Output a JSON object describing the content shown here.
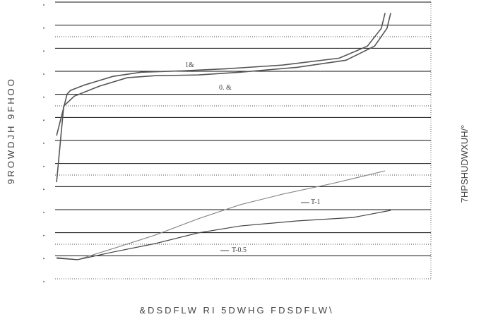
{
  "chart_data": {
    "type": "line",
    "x_label": "&DSDFLW RI 5DWHG FDSDFLW\\",
    "y_label": "9ROWDJH 9FHOO",
    "y2_label": "7HPSHUDWXUH/°",
    "xlim": [
      0,
      100
    ],
    "ylim": [
      0,
      12
    ],
    "yticks": [
      0,
      1,
      2,
      3,
      4,
      5,
      6,
      7,
      8,
      9,
      10,
      11,
      12
    ],
    "minor_grid": [
      1.5,
      4.5,
      7.5,
      10.5
    ],
    "grid": true,
    "series": [
      {
        "name": "1&",
        "color": "#555555",
        "x": [
          0.4,
          3.2,
          4.1,
          7.9,
          15.4,
          22.9,
          34.2,
          45.5,
          60.5,
          75.6,
          83.1,
          86.8,
          87.8
        ],
        "values": [
          6.21,
          8.01,
          8.17,
          8.41,
          8.78,
          8.96,
          9.02,
          9.11,
          9.27,
          9.57,
          10.09,
          10.86,
          11.53
        ]
      },
      {
        "name": "0. &",
        "color": "#555555",
        "x": [
          0.4,
          2.3,
          5.1,
          11.7,
          19.2,
          26.7,
          38.0,
          49.2,
          64.3,
          77.4,
          85.0,
          88.3,
          89.3
        ],
        "values": [
          4.19,
          7.49,
          7.92,
          8.35,
          8.72,
          8.81,
          8.84,
          8.96,
          9.17,
          9.48,
          10.09,
          10.86,
          11.53
        ]
      },
      {
        "name": "T-1",
        "color": "#888888",
        "x": [
          0.4,
          6.0,
          15.4,
          26.7,
          38.0,
          49.2,
          60.5,
          73.7,
          87.8
        ],
        "values": [
          0.92,
          0.83,
          1.31,
          1.9,
          2.6,
          3.21,
          3.67,
          4.13,
          4.68
        ]
      },
      {
        "name": "T-0.5",
        "color": "#444444",
        "x": [
          0.4,
          6.0,
          15.4,
          26.7,
          38.0,
          49.2,
          64.3,
          79.3,
          89.3
        ],
        "values": [
          0.89,
          0.83,
          1.16,
          1.53,
          1.99,
          2.29,
          2.51,
          2.66,
          2.97
        ]
      }
    ]
  }
}
